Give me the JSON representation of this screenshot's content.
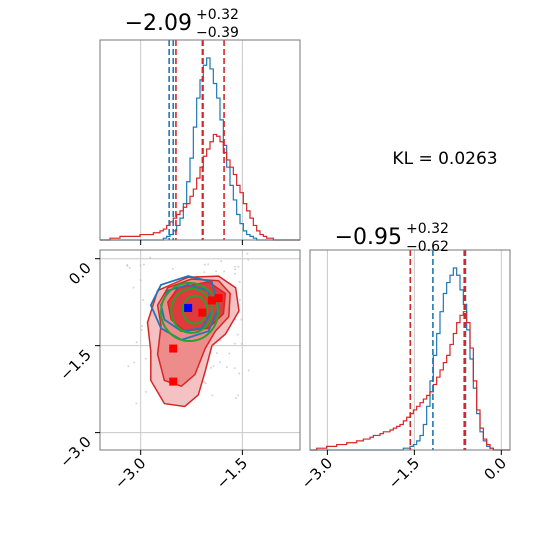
{
  "chart_data": {
    "type": "corner",
    "colors": {
      "blue": "#1f77b4",
      "red": "#d62728",
      "green": "#2ca02c",
      "marker_blue": "#0000ff",
      "marker_red": "#ff0000",
      "grid": "#c8c8c8",
      "axis": "#777777"
    },
    "kl_text": "KL = 0.0263",
    "params": [
      {
        "title_main": "−2.09",
        "title_sup": "+0.32",
        "title_sub": "−0.39",
        "range": [
          -3.6,
          -0.65
        ],
        "ticks": [
          -3.0,
          -1.5
        ],
        "tick_labels": [
          "−3.0",
          "−1.5"
        ],
        "quantiles_blue": [
          -2.58,
          -2.08
        ],
        "median_blue": -2.52,
        "quantiles_red": [
          -2.48,
          -1.77
        ],
        "median_red": -2.09
      },
      {
        "title_main": "−0.95",
        "title_sup": "+0.32",
        "title_sub": "−0.62",
        "range": [
          -3.3,
          0.15
        ],
        "ticks": [
          -3.0,
          -1.5,
          0.0
        ],
        "tick_labels": [
          "−3.0",
          "−1.5",
          "0.0"
        ],
        "quantiles_blue": [
          -1.18,
          -0.62
        ],
        "median_blue": -0.62,
        "quantiles_red": [
          -1.57,
          -0.63
        ],
        "median_red": -0.64
      }
    ],
    "hist_bins": {
      "x_start": -3.6,
      "x_end": -0.65,
      "n": 60
    },
    "hist1_blue": [
      0,
      0,
      0,
      0,
      0,
      0,
      0,
      0,
      0,
      0,
      0,
      0,
      0,
      0,
      0,
      0,
      0,
      0,
      0,
      1,
      2,
      3,
      5,
      8,
      12,
      20,
      32,
      45,
      62,
      78,
      88,
      96,
      100,
      94,
      86,
      78,
      66,
      52,
      40,
      30,
      22,
      14,
      9,
      5,
      3,
      2,
      1,
      0,
      0,
      0,
      0,
      0,
      0,
      0,
      0,
      0,
      0,
      0,
      0,
      0
    ],
    "hist1_red": [
      0,
      0,
      0,
      1,
      1,
      1,
      2,
      2,
      2,
      2,
      2,
      2,
      3,
      3,
      3,
      3,
      4,
      4,
      5,
      6,
      8,
      10,
      12,
      14,
      16,
      18,
      20,
      24,
      28,
      34,
      40,
      46,
      50,
      54,
      58,
      57,
      54,
      48,
      44,
      40,
      36,
      30,
      26,
      20,
      16,
      12,
      8,
      5,
      3,
      2,
      1,
      1,
      0,
      0,
      0,
      0,
      0,
      0,
      0,
      0
    ],
    "hist2_bins": {
      "x_start": -3.3,
      "x_end": 0.15,
      "n": 60
    },
    "hist2_blue": [
      0,
      0,
      0,
      0,
      0,
      0,
      0,
      0,
      0,
      0,
      0,
      0,
      0,
      0,
      0,
      0,
      0,
      0,
      0,
      0,
      0,
      0,
      0,
      0,
      0,
      0,
      0,
      0,
      1,
      1,
      2,
      3,
      5,
      8,
      14,
      24,
      38,
      52,
      64,
      76,
      86,
      92,
      96,
      100,
      96,
      88,
      80,
      66,
      50,
      34,
      20,
      10,
      5,
      2,
      1,
      0,
      0,
      0,
      0,
      0
    ],
    "hist2_red": [
      0,
      0,
      1,
      1,
      1,
      2,
      2,
      2,
      3,
      3,
      3,
      4,
      4,
      4,
      5,
      5,
      6,
      6,
      7,
      8,
      8,
      9,
      10,
      10,
      11,
      12,
      13,
      14,
      16,
      18,
      20,
      22,
      24,
      26,
      28,
      30,
      32,
      36,
      40,
      44,
      48,
      52,
      58,
      64,
      70,
      74,
      76,
      70,
      56,
      38,
      22,
      12,
      6,
      3,
      1,
      0,
      0,
      0,
      0,
      0
    ],
    "scatter2d": {
      "red_markers": [
        [
          -2.09,
          -0.93
        ],
        [
          -2.52,
          -1.55
        ],
        [
          -2.52,
          -2.12
        ],
        [
          -1.95,
          -0.72
        ],
        [
          -1.85,
          -0.68
        ]
      ],
      "blue_marker": [
        -2.3,
        -0.85
      ],
      "red_filled_outer": [
        [
          -2.75,
          -0.55
        ],
        [
          -2.3,
          -0.32
        ],
        [
          -1.85,
          -0.3
        ],
        [
          -1.6,
          -0.5
        ],
        [
          -1.55,
          -0.9
        ],
        [
          -1.75,
          -1.3
        ],
        [
          -1.95,
          -1.5
        ],
        [
          -2.05,
          -1.95
        ],
        [
          -2.15,
          -2.35
        ],
        [
          -2.35,
          -2.55
        ],
        [
          -2.65,
          -2.5
        ],
        [
          -2.85,
          -2.1
        ],
        [
          -2.85,
          -1.6
        ],
        [
          -2.9,
          -1.1
        ]
      ],
      "red_filled_mid": [
        [
          -2.6,
          -0.5
        ],
        [
          -2.25,
          -0.35
        ],
        [
          -1.85,
          -0.38
        ],
        [
          -1.68,
          -0.6
        ],
        [
          -1.7,
          -1.0
        ],
        [
          -1.9,
          -1.25
        ],
        [
          -2.05,
          -1.55
        ],
        [
          -2.2,
          -2.0
        ],
        [
          -2.4,
          -2.2
        ],
        [
          -2.65,
          -2.1
        ],
        [
          -2.75,
          -1.65
        ],
        [
          -2.7,
          -1.15
        ],
        [
          -2.75,
          -0.8
        ]
      ],
      "red_filled_inner": [
        [
          -2.45,
          -0.5
        ],
        [
          -2.0,
          -0.4
        ],
        [
          -1.75,
          -0.6
        ],
        [
          -1.78,
          -0.95
        ],
        [
          -2.0,
          -1.2
        ],
        [
          -2.35,
          -1.25
        ],
        [
          -2.55,
          -1.05
        ],
        [
          -2.6,
          -0.75
        ]
      ],
      "blue_contours": [
        [
          [
            -2.7,
            -0.45
          ],
          [
            -2.3,
            -0.3
          ],
          [
            -1.95,
            -0.4
          ],
          [
            -1.85,
            -0.85
          ],
          [
            -2.0,
            -1.25
          ],
          [
            -2.4,
            -1.4
          ],
          [
            -2.7,
            -1.2
          ],
          [
            -2.85,
            -0.8
          ]
        ],
        [
          [
            -2.6,
            -0.55
          ],
          [
            -2.3,
            -0.45
          ],
          [
            -2.0,
            -0.55
          ],
          [
            -1.95,
            -0.9
          ],
          [
            -2.1,
            -1.2
          ],
          [
            -2.4,
            -1.25
          ],
          [
            -2.65,
            -1.05
          ],
          [
            -2.7,
            -0.8
          ]
        ]
      ],
      "green_ellipses": [
        {
          "cx": -2.28,
          "cy": -0.92,
          "rx": 0.42,
          "ry": 0.5
        },
        {
          "cx": -2.25,
          "cy": -0.9,
          "rx": 0.3,
          "ry": 0.38
        },
        {
          "cx": -2.2,
          "cy": -0.88,
          "rx": 0.18,
          "ry": 0.24
        }
      ]
    }
  }
}
